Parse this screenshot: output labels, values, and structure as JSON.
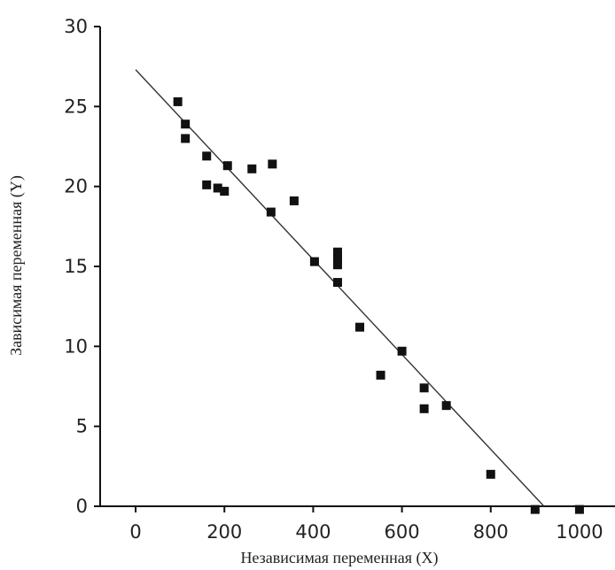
{
  "chart_data": {
    "type": "scatter",
    "title": "",
    "xlabel": "Независимая переменная (X)",
    "ylabel": "Зависимая переменная (Y)",
    "xlim": [
      -80,
      1080
    ],
    "ylim": [
      0,
      30
    ],
    "xticks": [
      0,
      200,
      400,
      600,
      800,
      1000
    ],
    "yticks": [
      0,
      5,
      10,
      15,
      20,
      25,
      30
    ],
    "grid": false,
    "legend": "none",
    "points": [
      {
        "x": 95,
        "y": 25.3
      },
      {
        "x": 112,
        "y": 23.9
      },
      {
        "x": 112,
        "y": 23.0
      },
      {
        "x": 160,
        "y": 21.9
      },
      {
        "x": 160,
        "y": 20.1
      },
      {
        "x": 185,
        "y": 19.9
      },
      {
        "x": 200,
        "y": 19.7
      },
      {
        "x": 207,
        "y": 21.3
      },
      {
        "x": 262,
        "y": 21.1
      },
      {
        "x": 308,
        "y": 21.4
      },
      {
        "x": 305,
        "y": 18.4
      },
      {
        "x": 357,
        "y": 19.1
      },
      {
        "x": 403,
        "y": 15.3
      },
      {
        "x": 455,
        "y": 15.9
      },
      {
        "x": 455,
        "y": 15.5
      },
      {
        "x": 455,
        "y": 15.1
      },
      {
        "x": 455,
        "y": 14.0
      },
      {
        "x": 505,
        "y": 11.2
      },
      {
        "x": 552,
        "y": 8.2
      },
      {
        "x": 600,
        "y": 9.7
      },
      {
        "x": 650,
        "y": 7.4
      },
      {
        "x": 650,
        "y": 6.1
      },
      {
        "x": 700,
        "y": 6.3
      },
      {
        "x": 800,
        "y": 2.0
      },
      {
        "x": 900,
        "y": -0.2
      },
      {
        "x": 1000,
        "y": -0.2
      }
    ],
    "fit_line": {
      "x": [
        0,
        920
      ],
      "y": [
        27.3,
        0
      ]
    }
  }
}
